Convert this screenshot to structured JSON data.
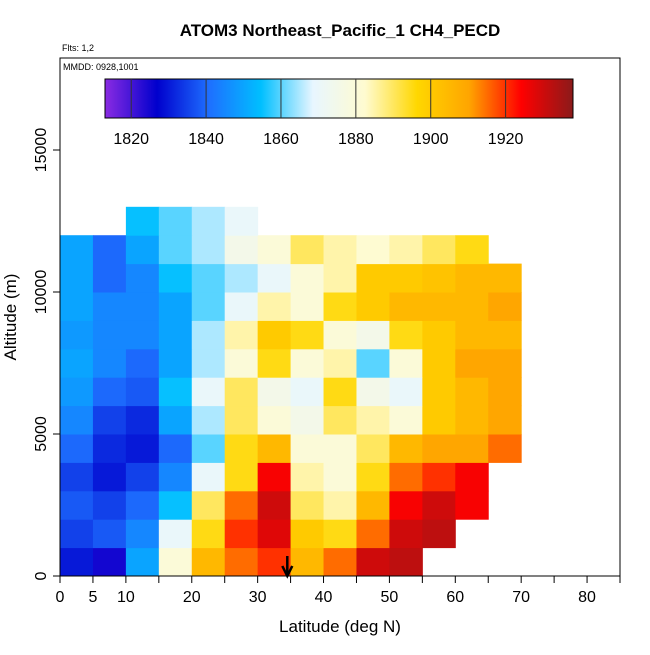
{
  "chart_data": {
    "type": "heatmap",
    "title": "ATOM3 Northeast_Pacific_1 CH4_PECD",
    "annotations": [
      "Flts: 1,2",
      "MMDD: 0928,1001"
    ],
    "x_label": "Latitude (deg N)",
    "y_label": "Altitude (m)",
    "xlim": [
      0,
      85
    ],
    "xticks": [
      0,
      5,
      10,
      20,
      30,
      40,
      50,
      60,
      70,
      80
    ],
    "xminorticks": [
      15,
      25,
      35,
      45,
      55,
      65,
      75,
      85
    ],
    "ylim": [
      0,
      18240
    ],
    "yticks": [
      0,
      5000,
      10000,
      15000
    ],
    "xbins": [
      0,
      5,
      10,
      15,
      20,
      25,
      30,
      35,
      40,
      45,
      50,
      55,
      60,
      65,
      70
    ],
    "ybins": [
      0,
      1000,
      2000,
      3000,
      4000,
      5000,
      6000,
      7000,
      8000,
      9000,
      10000,
      11000,
      12000,
      13000
    ],
    "values": [
      [
        1830,
        1825,
        1850,
        1880,
        1905,
        1915,
        1920,
        1905,
        1915,
        1930,
        1932,
        null,
        null,
        null
      ],
      [
        1835,
        1838,
        1845,
        1870,
        1895,
        1920,
        1928,
        1900,
        1895,
        1915,
        1930,
        1932,
        null,
        null
      ],
      [
        1838,
        1835,
        1840,
        1855,
        1890,
        1915,
        1930,
        1890,
        1885,
        1905,
        1925,
        1930,
        1925,
        null
      ],
      [
        1835,
        1830,
        1835,
        1845,
        1870,
        1895,
        1925,
        1885,
        1880,
        1895,
        1915,
        1920,
        1925,
        null
      ],
      [
        1840,
        1832,
        1830,
        1840,
        1860,
        1895,
        1905,
        1880,
        1880,
        1890,
        1905,
        1910,
        1910,
        1915
      ],
      [
        1845,
        1835,
        1832,
        1850,
        1865,
        1890,
        1880,
        1875,
        1890,
        1885,
        1880,
        1900,
        1905,
        1910
      ],
      [
        1848,
        1840,
        1838,
        1855,
        1870,
        1890,
        1875,
        1870,
        1895,
        1875,
        1870,
        1900,
        1905,
        1910
      ],
      [
        1850,
        1845,
        1840,
        1850,
        1865,
        1880,
        1895,
        1880,
        1885,
        1860,
        1880,
        1900,
        1910,
        1910
      ],
      [
        1848,
        1845,
        1845,
        1850,
        1865,
        1885,
        1900,
        1895,
        1880,
        1875,
        1895,
        1900,
        1905,
        1905
      ],
      [
        1850,
        1845,
        1845,
        1850,
        1860,
        1870,
        1885,
        1880,
        1895,
        1900,
        1905,
        1905,
        1905,
        1910
      ],
      [
        1850,
        1840,
        1845,
        1855,
        1860,
        1865,
        1870,
        1880,
        1885,
        1900,
        1900,
        1902,
        1905,
        1905
      ],
      [
        1850,
        1840,
        1850,
        1860,
        1865,
        1875,
        1880,
        1890,
        1885,
        1882,
        1885,
        1890,
        1895,
        null
      ],
      [
        null,
        null,
        1855,
        1860,
        1865,
        1870,
        null,
        null,
        null,
        null,
        null,
        null,
        null,
        null
      ]
    ],
    "clim": [
      1813,
      1938
    ],
    "cbticks": [
      1820,
      1840,
      1860,
      1880,
      1900,
      1920
    ],
    "colormap": [
      "#8a2be2",
      "#0000cd",
      "#1e6fff",
      "#00bfff",
      "#e8f6ff",
      "#fffbd0",
      "#ffd700",
      "#ffa500",
      "#ff0000",
      "#8b1a1a"
    ],
    "arrow_x": 34.5
  }
}
